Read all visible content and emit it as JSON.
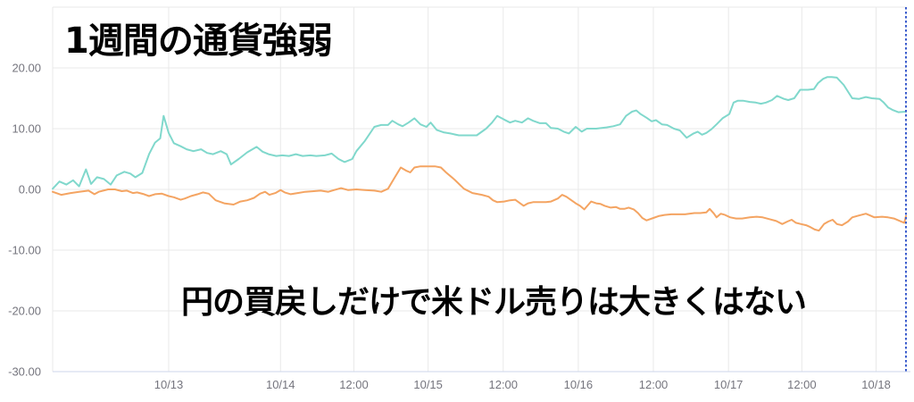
{
  "title": {
    "text": "1週間の通貨強弱",
    "color": "#000000"
  },
  "annotation": {
    "text": "円の買戻しだけで米ドル売りは大きくはない",
    "color": "#000000"
  },
  "chart": {
    "background": "#ffffff",
    "grid_color": "#e9e9e9",
    "axis_line_color": "#ccd6eb",
    "label_color": "#75757e"
  },
  "chart_data": {
    "type": "line",
    "title": "1週間の通貨強弱",
    "annotation": "円の買戻しだけで米ドル売りは大きくはない",
    "legend": false,
    "grid": true,
    "y_axis": {
      "min": -30,
      "max": 30,
      "tick_interval": 10,
      "tick_values": [
        20,
        10,
        0,
        -10,
        -20,
        -30
      ],
      "tick_labels": [
        "20.00",
        "10.00",
        "0.00",
        "-10.00",
        "-20.00",
        "-30.00"
      ],
      "gridline_values": [
        30,
        20,
        10,
        0,
        -10,
        -20
      ]
    },
    "x_axis": {
      "ticks": [
        {
          "label": "10/13",
          "pos_pct": 13.6
        },
        {
          "label": "10/14",
          "pos_pct": 26.7
        },
        {
          "label": "12:00",
          "pos_pct": 35.3
        },
        {
          "label": "10/15",
          "pos_pct": 44.0
        },
        {
          "label": "12:00",
          "pos_pct": 52.8
        },
        {
          "label": "10/16",
          "pos_pct": 61.6
        },
        {
          "label": "12:00",
          "pos_pct": 70.4
        },
        {
          "label": "10/17",
          "pos_pct": 79.2
        },
        {
          "label": "12:00",
          "pos_pct": 87.8
        },
        {
          "label": "10/18",
          "pos_pct": 96.5
        }
      ]
    },
    "cursor_line": {
      "pos_pct": 100,
      "color": "#3b5ccc",
      "style": "dotted"
    },
    "series": [
      {
        "id": "teal-line",
        "color": "#80d8cc",
        "points": [
          [
            0,
            0.1
          ],
          [
            0.8,
            1.3
          ],
          [
            1.6,
            0.8
          ],
          [
            2.4,
            1.5
          ],
          [
            3.1,
            0.5
          ],
          [
            3.9,
            3.3
          ],
          [
            4.5,
            0.9
          ],
          [
            5.2,
            2.0
          ],
          [
            6.0,
            1.7
          ],
          [
            6.8,
            0.8
          ],
          [
            7.5,
            2.3
          ],
          [
            8.4,
            2.9
          ],
          [
            9.1,
            2.6
          ],
          [
            9.7,
            2.0
          ],
          [
            10.5,
            2.7
          ],
          [
            11.3,
            5.8
          ],
          [
            12.0,
            7.7
          ],
          [
            12.6,
            8.4
          ],
          [
            13.0,
            12.1
          ],
          [
            13.6,
            9.3
          ],
          [
            14.2,
            7.6
          ],
          [
            15.0,
            7.1
          ],
          [
            15.7,
            6.6
          ],
          [
            16.5,
            6.3
          ],
          [
            17.4,
            6.6
          ],
          [
            18.1,
            6.0
          ],
          [
            18.8,
            5.8
          ],
          [
            19.7,
            6.3
          ],
          [
            20.4,
            5.8
          ],
          [
            20.9,
            4.1
          ],
          [
            21.8,
            5.0
          ],
          [
            22.8,
            6.1
          ],
          [
            23.9,
            7.0
          ],
          [
            24.6,
            6.2
          ],
          [
            25.3,
            5.8
          ],
          [
            26.2,
            5.5
          ],
          [
            26.9,
            5.6
          ],
          [
            27.7,
            5.5
          ],
          [
            28.5,
            5.8
          ],
          [
            29.3,
            5.5
          ],
          [
            30.2,
            5.6
          ],
          [
            30.9,
            5.5
          ],
          [
            31.9,
            5.6
          ],
          [
            32.7,
            5.9
          ],
          [
            33.5,
            5.0
          ],
          [
            34.2,
            4.5
          ],
          [
            35.1,
            5.0
          ],
          [
            35.6,
            6.3
          ],
          [
            36.6,
            8.0
          ],
          [
            37.7,
            10.3
          ],
          [
            38.5,
            10.6
          ],
          [
            39.3,
            10.6
          ],
          [
            39.8,
            11.3
          ],
          [
            40.5,
            10.7
          ],
          [
            41.0,
            10.4
          ],
          [
            41.7,
            11.0
          ],
          [
            42.4,
            11.7
          ],
          [
            43.1,
            10.7
          ],
          [
            43.8,
            10.3
          ],
          [
            44.3,
            11.0
          ],
          [
            45.0,
            9.8
          ],
          [
            45.8,
            9.4
          ],
          [
            46.6,
            9.2
          ],
          [
            47.6,
            8.9
          ],
          [
            48.7,
            8.9
          ],
          [
            49.7,
            8.9
          ],
          [
            50.8,
            10.0
          ],
          [
            51.5,
            11.0
          ],
          [
            52.1,
            12.1
          ],
          [
            52.9,
            11.5
          ],
          [
            53.6,
            11.0
          ],
          [
            54.2,
            11.3
          ],
          [
            55.0,
            11.0
          ],
          [
            55.7,
            11.7
          ],
          [
            56.3,
            11.3
          ],
          [
            57.1,
            10.9
          ],
          [
            57.8,
            10.9
          ],
          [
            58.4,
            10.1
          ],
          [
            59.2,
            10.0
          ],
          [
            59.9,
            9.5
          ],
          [
            60.5,
            9.2
          ],
          [
            61.3,
            10.3
          ],
          [
            62.0,
            9.5
          ],
          [
            62.6,
            10.0
          ],
          [
            63.7,
            10.0
          ],
          [
            64.9,
            10.2
          ],
          [
            65.7,
            10.4
          ],
          [
            66.5,
            10.7
          ],
          [
            67.2,
            12.1
          ],
          [
            67.9,
            12.8
          ],
          [
            68.4,
            13.0
          ],
          [
            68.9,
            12.4
          ],
          [
            69.6,
            11.8
          ],
          [
            70.2,
            11.2
          ],
          [
            70.7,
            11.4
          ],
          [
            71.4,
            10.7
          ],
          [
            72.0,
            10.6
          ],
          [
            72.8,
            10.0
          ],
          [
            73.5,
            9.7
          ],
          [
            74.3,
            8.5
          ],
          [
            75.1,
            9.2
          ],
          [
            75.6,
            9.5
          ],
          [
            76.1,
            9.0
          ],
          [
            76.6,
            9.3
          ],
          [
            77.2,
            9.9
          ],
          [
            77.8,
            10.7
          ],
          [
            78.5,
            11.7
          ],
          [
            79.3,
            12.4
          ],
          [
            79.8,
            14.3
          ],
          [
            80.3,
            14.6
          ],
          [
            80.9,
            14.6
          ],
          [
            81.7,
            14.4
          ],
          [
            82.4,
            14.3
          ],
          [
            83.0,
            14.1
          ],
          [
            83.6,
            14.3
          ],
          [
            84.3,
            14.7
          ],
          [
            84.9,
            15.4
          ],
          [
            85.7,
            14.9
          ],
          [
            86.2,
            14.7
          ],
          [
            86.9,
            15.0
          ],
          [
            87.6,
            16.4
          ],
          [
            88.5,
            16.4
          ],
          [
            89.2,
            16.5
          ],
          [
            89.7,
            17.5
          ],
          [
            90.3,
            18.2
          ],
          [
            90.8,
            18.5
          ],
          [
            91.3,
            18.5
          ],
          [
            91.9,
            18.4
          ],
          [
            92.7,
            17.2
          ],
          [
            93.2,
            16.1
          ],
          [
            93.7,
            15.0
          ],
          [
            94.5,
            14.9
          ],
          [
            95.3,
            15.2
          ],
          [
            96.0,
            15.0
          ],
          [
            96.9,
            14.9
          ],
          [
            97.4,
            14.3
          ],
          [
            97.9,
            13.5
          ],
          [
            98.4,
            13.1
          ],
          [
            99.1,
            12.7
          ],
          [
            100,
            12.8
          ]
        ]
      },
      {
        "id": "orange-line",
        "color": "#f4a462",
        "points": [
          [
            0,
            -0.4
          ],
          [
            1.0,
            -0.9
          ],
          [
            2.1,
            -0.6
          ],
          [
            3.1,
            -0.4
          ],
          [
            4.2,
            -0.2
          ],
          [
            4.9,
            -0.8
          ],
          [
            5.4,
            -0.4
          ],
          [
            6.5,
            0.0
          ],
          [
            7.3,
            0.0
          ],
          [
            8.1,
            -0.3
          ],
          [
            8.7,
            -0.2
          ],
          [
            9.4,
            -0.6
          ],
          [
            9.9,
            -0.5
          ],
          [
            10.7,
            -0.8
          ],
          [
            11.3,
            -1.1
          ],
          [
            12.0,
            -0.8
          ],
          [
            12.8,
            -0.7
          ],
          [
            13.6,
            -1.1
          ],
          [
            14.2,
            -1.3
          ],
          [
            15.0,
            -1.7
          ],
          [
            15.5,
            -1.5
          ],
          [
            16.2,
            -1.1
          ],
          [
            17.0,
            -0.8
          ],
          [
            17.6,
            -0.5
          ],
          [
            18.3,
            -0.7
          ],
          [
            19.1,
            -1.8
          ],
          [
            20.1,
            -2.3
          ],
          [
            21.2,
            -2.5
          ],
          [
            22.0,
            -2.0
          ],
          [
            22.8,
            -1.8
          ],
          [
            23.6,
            -1.4
          ],
          [
            24.3,
            -0.7
          ],
          [
            24.9,
            -0.4
          ],
          [
            25.4,
            -0.9
          ],
          [
            26.1,
            -0.6
          ],
          [
            26.7,
            -0.1
          ],
          [
            27.2,
            -0.5
          ],
          [
            27.9,
            -0.8
          ],
          [
            28.7,
            -0.6
          ],
          [
            29.6,
            -0.4
          ],
          [
            30.6,
            -0.3
          ],
          [
            31.4,
            -0.2
          ],
          [
            32.3,
            -0.4
          ],
          [
            33.0,
            -0.1
          ],
          [
            33.8,
            0.2
          ],
          [
            34.6,
            -0.1
          ],
          [
            35.6,
            0.0
          ],
          [
            36.6,
            -0.1
          ],
          [
            37.7,
            -0.2
          ],
          [
            38.5,
            -0.4
          ],
          [
            39.3,
            0.1
          ],
          [
            40.1,
            2.0
          ],
          [
            40.8,
            3.6
          ],
          [
            41.4,
            3.1
          ],
          [
            41.9,
            2.8
          ],
          [
            42.4,
            3.6
          ],
          [
            43.1,
            3.8
          ],
          [
            44.0,
            3.8
          ],
          [
            44.8,
            3.8
          ],
          [
            45.5,
            3.6
          ],
          [
            46.1,
            2.8
          ],
          [
            47.1,
            1.6
          ],
          [
            48.2,
            0.1
          ],
          [
            49.2,
            -0.6
          ],
          [
            50.3,
            -0.9
          ],
          [
            51.1,
            -1.2
          ],
          [
            51.6,
            -1.8
          ],
          [
            52.1,
            -2.1
          ],
          [
            52.9,
            -2.0
          ],
          [
            53.6,
            -1.8
          ],
          [
            54.2,
            -1.7
          ],
          [
            55.2,
            -2.7
          ],
          [
            55.7,
            -2.3
          ],
          [
            56.3,
            -2.1
          ],
          [
            57.1,
            -2.1
          ],
          [
            57.8,
            -2.1
          ],
          [
            58.4,
            -2.0
          ],
          [
            59.2,
            -1.5
          ],
          [
            59.7,
            -0.9
          ],
          [
            60.2,
            -1.2
          ],
          [
            60.7,
            -1.7
          ],
          [
            61.3,
            -2.3
          ],
          [
            61.8,
            -2.7
          ],
          [
            62.3,
            -3.3
          ],
          [
            63.1,
            -2.0
          ],
          [
            63.7,
            -2.3
          ],
          [
            64.2,
            -2.4
          ],
          [
            64.7,
            -2.7
          ],
          [
            65.4,
            -3.0
          ],
          [
            66.0,
            -2.9
          ],
          [
            66.5,
            -3.2
          ],
          [
            67.0,
            -3.2
          ],
          [
            67.5,
            -3.0
          ],
          [
            68.1,
            -3.3
          ],
          [
            68.6,
            -3.9
          ],
          [
            69.1,
            -4.7
          ],
          [
            69.6,
            -5.1
          ],
          [
            70.4,
            -4.7
          ],
          [
            71.0,
            -4.4
          ],
          [
            71.7,
            -4.2
          ],
          [
            72.5,
            -4.1
          ],
          [
            73.3,
            -4.1
          ],
          [
            74.1,
            -4.1
          ],
          [
            75.2,
            -3.9
          ],
          [
            75.9,
            -3.9
          ],
          [
            76.6,
            -3.8
          ],
          [
            77.0,
            -3.2
          ],
          [
            77.5,
            -4.0
          ],
          [
            77.8,
            -4.6
          ],
          [
            78.3,
            -4.0
          ],
          [
            78.8,
            -4.2
          ],
          [
            79.4,
            -4.6
          ],
          [
            80.1,
            -4.8
          ],
          [
            80.8,
            -4.8
          ],
          [
            81.7,
            -4.6
          ],
          [
            82.5,
            -4.5
          ],
          [
            83.2,
            -4.6
          ],
          [
            84.0,
            -4.9
          ],
          [
            84.8,
            -5.2
          ],
          [
            85.5,
            -5.7
          ],
          [
            86.1,
            -5.3
          ],
          [
            86.6,
            -5.0
          ],
          [
            87.1,
            -5.5
          ],
          [
            87.7,
            -5.7
          ],
          [
            88.3,
            -5.9
          ],
          [
            88.8,
            -6.2
          ],
          [
            89.3,
            -6.6
          ],
          [
            89.8,
            -6.8
          ],
          [
            90.4,
            -5.7
          ],
          [
            90.9,
            -5.3
          ],
          [
            91.4,
            -5.0
          ],
          [
            91.9,
            -5.7
          ],
          [
            92.5,
            -5.9
          ],
          [
            93.2,
            -5.3
          ],
          [
            93.7,
            -4.6
          ],
          [
            94.5,
            -4.3
          ],
          [
            95.3,
            -4.0
          ],
          [
            95.8,
            -4.3
          ],
          [
            96.3,
            -4.6
          ],
          [
            97.2,
            -4.5
          ],
          [
            97.9,
            -4.6
          ],
          [
            98.6,
            -4.8
          ],
          [
            99.3,
            -5.2
          ],
          [
            99.8,
            -5.5
          ],
          [
            100,
            -4.4
          ]
        ]
      }
    ]
  }
}
